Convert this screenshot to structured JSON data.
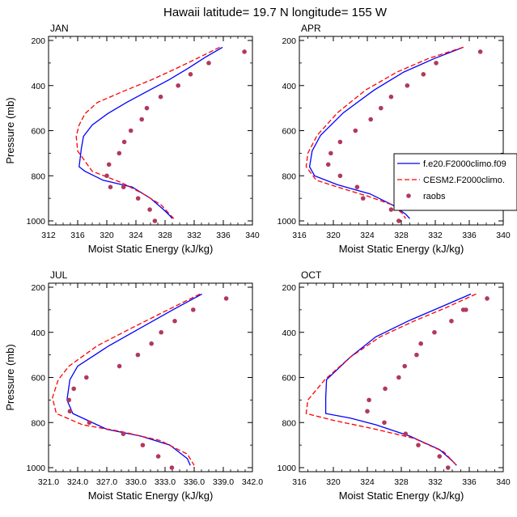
{
  "figure": {
    "title": "Hawaii  latitude= 19.7 N longitude= 155 W"
  },
  "legend": {
    "items": [
      {
        "label": "f.e20.F2000climo.f09",
        "color": "#0000ff",
        "style": "solid"
      },
      {
        "label": "CESM2.F2000climo.",
        "color": "#ff0000",
        "style": "dashed"
      },
      {
        "label": "raobs",
        "color": "#b03a5a",
        "style": "marker"
      }
    ]
  },
  "chart_data": [
    {
      "type": "line",
      "panel": "JAN",
      "xlabel": "Moist Static Energy (kJ/kg)",
      "ylabel": "Pressure (mb)",
      "xlim": [
        312,
        340
      ],
      "xticks": [
        312,
        316,
        320,
        324,
        328,
        332,
        336,
        340
      ],
      "xtick_labels": [
        "312",
        "316",
        "320",
        "324",
        "328",
        "332",
        "336",
        "340"
      ],
      "ylim": [
        1000,
        200
      ],
      "yticks": [
        200,
        400,
        600,
        800,
        1000
      ],
      "ytick_labels": [
        "200",
        "400",
        "600",
        "800",
        "1000"
      ],
      "series": [
        {
          "name": "f.e20.F2000climo.f09",
          "x": [
            335.9,
            333.5,
            331.1,
            328.5,
            325.6,
            322.7,
            320.1,
            318.0,
            316.8,
            316.5,
            316.2,
            317.0,
            319.5,
            323.5,
            326.0,
            327.8,
            328.6,
            329.0
          ],
          "y": [
            230,
            275,
            325,
            375,
            425,
            475,
            525,
            575,
            625,
            680,
            760,
            780,
            820,
            850,
            900,
            950,
            975,
            990
          ]
        },
        {
          "name": "CESM2.F2000climo.",
          "x": [
            335.5,
            332.7,
            329.5,
            326.1,
            322.3,
            318.7,
            317.0,
            316.2,
            315.8,
            316.0,
            318.0,
            322.0,
            325.0,
            327.5,
            328.6,
            329.2
          ],
          "y": [
            230,
            275,
            325,
            375,
            425,
            475,
            525,
            575,
            625,
            690,
            780,
            830,
            880,
            930,
            970,
            990
          ]
        },
        {
          "name": "raobs",
          "x": [
            338.9,
            334.0,
            331.5,
            329.8,
            327.4,
            325.5,
            324.8,
            323.3,
            322.4,
            321.7,
            320.3,
            320.0,
            320.5,
            322.3,
            324.3,
            325.9,
            326.6
          ],
          "y": [
            250,
            300,
            350,
            400,
            450,
            500,
            550,
            600,
            650,
            700,
            750,
            800,
            850,
            850,
            900,
            950,
            1000
          ]
        }
      ]
    },
    {
      "type": "line",
      "panel": "APR",
      "xlabel": "Moist Static Energy (kJ/kg)",
      "ylabel": "",
      "xlim": [
        316,
        340
      ],
      "xticks": [
        316,
        320,
        324,
        328,
        332,
        336,
        340
      ],
      "xtick_labels": [
        "316",
        "320",
        "324",
        "328",
        "332",
        "336",
        "340"
      ],
      "ylim": [
        1000,
        200
      ],
      "yticks": [
        200,
        400,
        600,
        800,
        1000
      ],
      "ytick_labels": [
        "200",
        "400",
        "600",
        "800",
        "1000"
      ],
      "series": [
        {
          "name": "f.e20.F2000climo.f09",
          "x": [
            335.3,
            331.9,
            328.3,
            324.8,
            321.2,
            318.5,
            317.5,
            317.2,
            317.8,
            320.5,
            324.3,
            327.0,
            328.5,
            329.0
          ],
          "y": [
            230,
            280,
            340,
            420,
            520,
            620,
            690,
            760,
            800,
            840,
            880,
            930,
            970,
            990
          ]
        },
        {
          "name": "CESM2.F2000climo.",
          "x": [
            335.3,
            331.2,
            327.5,
            323.8,
            320.5,
            318.1,
            317.0,
            316.8,
            318.0,
            320.5,
            324.0,
            327.0,
            328.2,
            328.5
          ],
          "y": [
            230,
            280,
            340,
            420,
            520,
            620,
            700,
            760,
            820,
            850,
            890,
            930,
            970,
            990
          ]
        },
        {
          "name": "raobs",
          "x": [
            337.3,
            332.1,
            330.6,
            328.7,
            326.8,
            325.6,
            324.4,
            322.6,
            320.8,
            319.7,
            319.4,
            320.8,
            322.8,
            323.5,
            326.8,
            327.7
          ],
          "y": [
            250,
            300,
            350,
            400,
            450,
            500,
            550,
            600,
            650,
            700,
            750,
            800,
            850,
            900,
            950,
            1000
          ]
        }
      ]
    },
    {
      "type": "line",
      "panel": "JUL",
      "xlabel": "Moist Static Energy (kJ/kg)",
      "ylabel": "Pressure (mb)",
      "xlim": [
        321,
        342
      ],
      "xticks": [
        321,
        324,
        327,
        330,
        333,
        336,
        339,
        342
      ],
      "xtick_labels": [
        "321.0",
        "324.0",
        "327.0",
        "330.0",
        "333.0",
        "336.0",
        "339.0",
        "342.0"
      ],
      "ylim": [
        1000,
        200
      ],
      "yticks": [
        200,
        400,
        600,
        800,
        1000
      ],
      "ytick_labels": [
        "200",
        "400",
        "600",
        "800",
        "1000"
      ],
      "series": [
        {
          "name": "f.e20.F2000climo.f09",
          "x": [
            336.8,
            333.8,
            330.5,
            327.2,
            324.0,
            323.2,
            322.9,
            323.5,
            327.0,
            330.5,
            333.5,
            335.3,
            335.6
          ],
          "y": [
            230,
            300,
            380,
            460,
            550,
            610,
            700,
            760,
            830,
            860,
            900,
            960,
            990
          ]
        },
        {
          "name": "CESM2.F2000climo.",
          "x": [
            336.6,
            333.3,
            329.6,
            326.0,
            323.1,
            322.0,
            321.4,
            321.8,
            324.5,
            328.5,
            332.5,
            335.3,
            336.0
          ],
          "y": [
            230,
            300,
            380,
            460,
            550,
            610,
            690,
            760,
            810,
            840,
            880,
            940,
            990
          ]
        },
        {
          "name": "raobs",
          "x": [
            339.3,
            335.9,
            334.0,
            332.6,
            331.6,
            330.2,
            328.3,
            324.9,
            323.6,
            323.1,
            323.2,
            325.2,
            328.7,
            330.7,
            332.3,
            333.7
          ],
          "y": [
            250,
            300,
            350,
            400,
            450,
            500,
            550,
            600,
            650,
            700,
            750,
            800,
            850,
            900,
            950,
            1000
          ]
        }
      ]
    },
    {
      "type": "line",
      "panel": "OCT",
      "xlabel": "Moist Static Energy (kJ/kg)",
      "ylabel": "",
      "xlim": [
        316,
        340
      ],
      "xticks": [
        316,
        320,
        324,
        328,
        332,
        336,
        340
      ],
      "xtick_labels": [
        "316",
        "320",
        "324",
        "328",
        "332",
        "336",
        "340"
      ],
      "ylim": [
        1000,
        200
      ],
      "yticks": [
        200,
        400,
        600,
        800,
        1000
      ],
      "ytick_labels": [
        "200",
        "400",
        "600",
        "800",
        "1000"
      ],
      "series": [
        {
          "name": "f.e20.F2000climo.f09",
          "x": [
            336.2,
            332.5,
            328.8,
            325.0,
            322.0,
            319.2,
            319.1,
            319.1,
            322.0,
            325.0,
            329.0,
            332.5,
            334.0,
            334.5
          ],
          "y": [
            230,
            290,
            350,
            420,
            510,
            610,
            690,
            760,
            780,
            810,
            860,
            920,
            970,
            990
          ]
        },
        {
          "name": "CESM2.F2000climo.",
          "x": [
            336.8,
            333.3,
            329.5,
            325.5,
            322.0,
            319.0,
            317.0,
            316.8,
            320.0,
            325.0,
            329.5,
            333.0,
            334.5
          ],
          "y": [
            230,
            290,
            350,
            420,
            510,
            610,
            700,
            760,
            790,
            830,
            870,
            930,
            990
          ]
        },
        {
          "name": "raobs",
          "x": [
            338.1,
            335.6,
            335.3,
            333.9,
            331.9,
            330.3,
            329.8,
            328.4,
            327.7,
            326.1,
            324.2,
            324.0,
            326.0,
            328.5,
            330.0,
            332.5,
            333.5
          ],
          "y": [
            250,
            300,
            300,
            350,
            400,
            450,
            500,
            550,
            600,
            650,
            700,
            750,
            800,
            850,
            900,
            950,
            1000
          ]
        }
      ]
    }
  ]
}
